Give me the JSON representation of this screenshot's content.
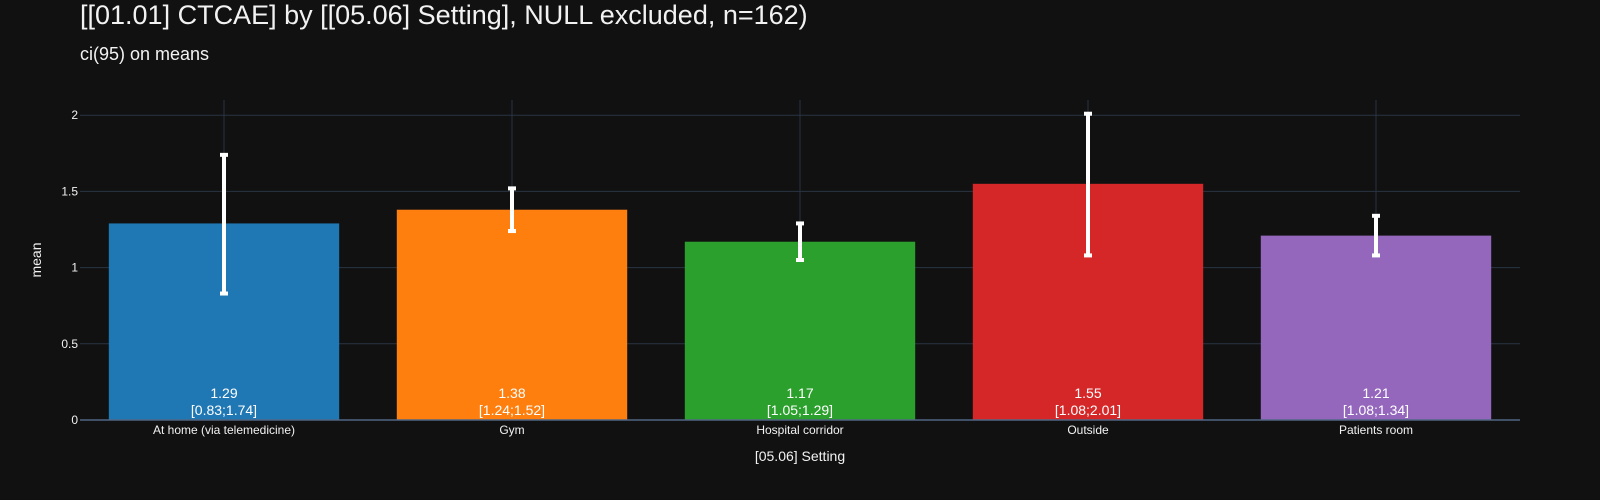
{
  "chart_data": {
    "type": "bar",
    "title": "[[01.01] CTCAE] by [[05.06] Setting], NULL excluded, n=162)",
    "subtitle": "ci(95) on means",
    "xlabel": "[05.06] Setting",
    "ylabel": "mean",
    "ylim": [
      0,
      2.1
    ],
    "yticks": [
      {
        "value": 0,
        "label": "0"
      },
      {
        "value": 0.5,
        "label": "0.5"
      },
      {
        "value": 1,
        "label": "1"
      },
      {
        "value": 1.5,
        "label": "1.5"
      },
      {
        "value": 2,
        "label": "2"
      }
    ],
    "grid": true,
    "categories": [
      "At home (via telemedicine)",
      "Gym",
      "Hospital corridor",
      "Outside",
      "Patients room"
    ],
    "values": [
      1.29,
      1.38,
      1.17,
      1.55,
      1.21
    ],
    "ci_low": [
      0.83,
      1.24,
      1.05,
      1.08,
      1.08
    ],
    "ci_high": [
      1.74,
      1.52,
      1.29,
      2.01,
      1.34
    ],
    "value_labels": [
      "1.29",
      "1.38",
      "1.17",
      "1.55",
      "1.21"
    ],
    "ci_labels": [
      "[0.83;1.74]",
      "[1.24;1.52]",
      "[1.05;1.29]",
      "[1.08;2.01]",
      "[1.08;1.34]"
    ],
    "colors": [
      "#1f77b4",
      "#ff7f0e",
      "#2ca02c",
      "#d62728",
      "#9467bd"
    ],
    "background": "#111111",
    "grid_color": "#283442",
    "error_bar_color": "#ffffff"
  }
}
